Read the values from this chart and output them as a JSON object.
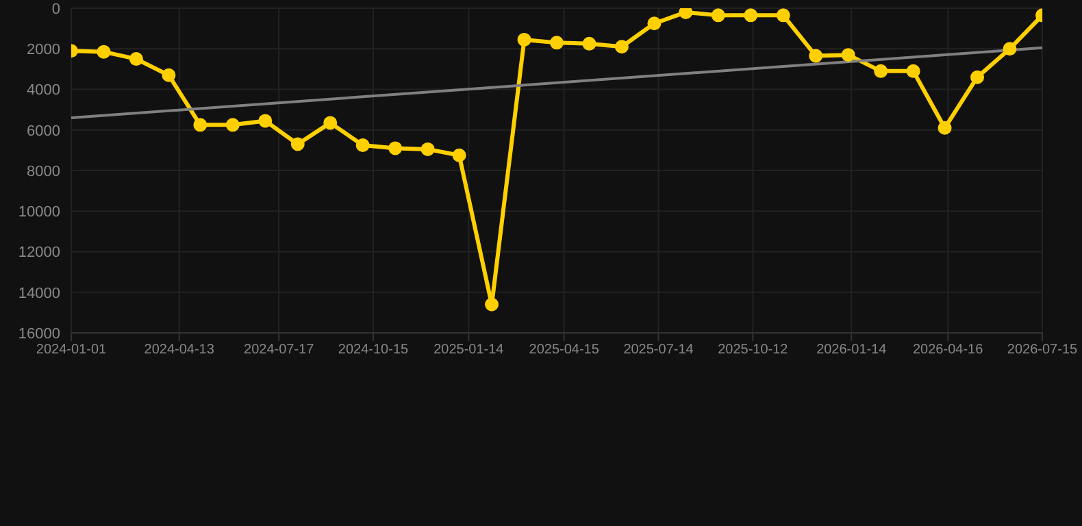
{
  "chart_data": {
    "type": "line",
    "x": [
      "2024-01-01",
      "2024-02-01",
      "2024-03-03",
      "2024-04-03",
      "2024-05-03",
      "2024-06-03",
      "2024-07-04",
      "2024-08-04",
      "2024-09-04",
      "2024-10-05",
      "2024-11-05",
      "2024-12-06",
      "2025-01-05",
      "2025-02-05",
      "2025-03-08",
      "2025-04-08",
      "2025-05-09",
      "2025-06-09",
      "2025-07-10",
      "2025-08-09",
      "2025-09-09",
      "2025-10-10",
      "2025-11-10",
      "2025-12-11",
      "2026-01-11",
      "2026-02-11",
      "2026-03-14",
      "2026-04-13",
      "2026-05-14",
      "2026-06-14",
      "2026-07-15"
    ],
    "series": [
      {
        "color": "#ffd000",
        "marker": "circle",
        "values": [
          2100,
          2150,
          2500,
          3300,
          5750,
          5750,
          5550,
          6700,
          5650,
          6750,
          6900,
          6950,
          7250,
          14600,
          1550,
          1700,
          1750,
          1900,
          750,
          200,
          350,
          350,
          350,
          2350,
          2300,
          3100,
          3100,
          5900,
          3400,
          2000,
          350
        ]
      },
      {
        "type": "line",
        "color": "#808080",
        "marker": "none",
        "x": [
          "2024-01-01",
          "2026-07-15"
        ],
        "values": [
          5400,
          1950
        ]
      }
    ],
    "xlim": [
      "2024-01-01",
      "2026-07-15"
    ],
    "xticks": [
      "2024-01-01",
      "2024-04-13",
      "2024-07-17",
      "2024-10-15",
      "2025-01-14",
      "2025-04-15",
      "2025-07-14",
      "2025-10-12",
      "2026-01-14",
      "2026-04-16",
      "2026-07-15"
    ],
    "ylim": [
      16000,
      0
    ],
    "yticks": [
      0,
      2000,
      4000,
      6000,
      8000,
      10000,
      12000,
      14000,
      16000
    ],
    "grid": true
  }
}
